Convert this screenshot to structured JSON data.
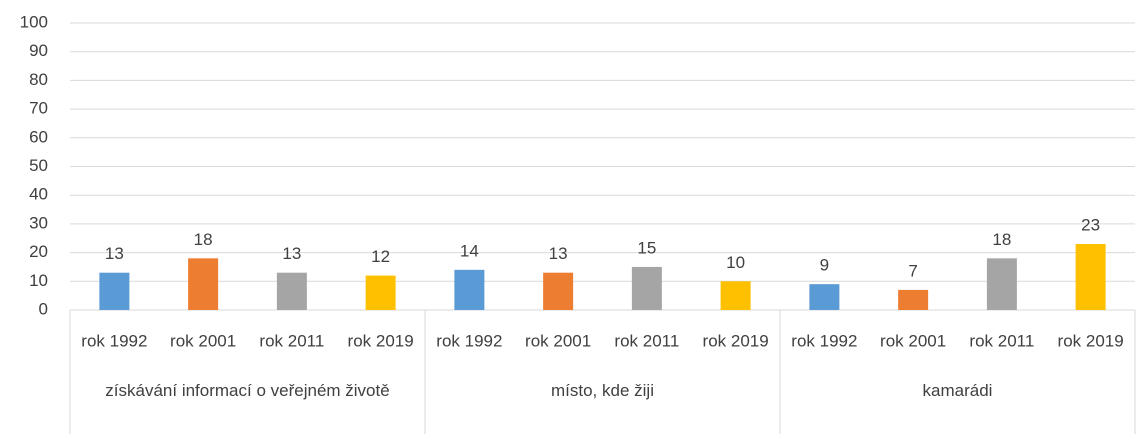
{
  "chart_data": {
    "type": "bar",
    "categories": [
      "získávání informací o veřejném životě",
      "místo, kde žiji",
      "kamarádi"
    ],
    "series": [
      {
        "name": "rok 1992",
        "color": "#5b9bd5",
        "values": [
          13,
          14,
          9
        ]
      },
      {
        "name": "rok 2001",
        "color": "#ed7d31",
        "values": [
          18,
          13,
          7
        ]
      },
      {
        "name": "rok 2011",
        "color": "#a5a5a5",
        "values": [
          13,
          15,
          18
        ]
      },
      {
        "name": "rok 2019",
        "color": "#ffc000",
        "values": [
          12,
          10,
          23
        ]
      }
    ],
    "ylim": [
      0,
      100
    ],
    "yticks": [
      0,
      10,
      20,
      30,
      40,
      50,
      60,
      70,
      80,
      90,
      100
    ],
    "grid": true
  }
}
